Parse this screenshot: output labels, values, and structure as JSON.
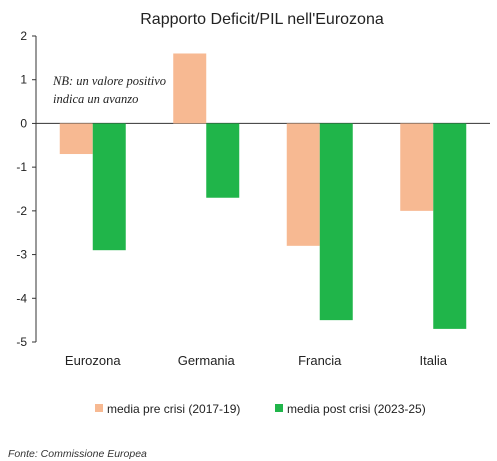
{
  "chart_data": {
    "type": "bar",
    "title": "Rapporto Deficit/PIL nell'Eurozona",
    "categories": [
      "Eurozona",
      "Germania",
      "Francia",
      "Italia"
    ],
    "series": [
      {
        "name": "media pre crisi (2017-19)",
        "values": [
          -0.7,
          1.6,
          -2.8,
          -2.0
        ],
        "color": "#f7b992"
      },
      {
        "name": "media post crisi (2023-25)",
        "values": [
          -2.9,
          -1.7,
          -4.5,
          -4.7
        ],
        "color": "#20b54a"
      }
    ],
    "ylim": [
      -5,
      2
    ],
    "yticks": [
      "2",
      "1",
      "0",
      "-1",
      "-2",
      "-3",
      "-4",
      "-5"
    ],
    "legend_position": "bottom",
    "grid": false,
    "annotation": [
      "NB: un valore positivo",
      "indica un avanzo"
    ],
    "source": "Fonte: Commissione Europea"
  }
}
